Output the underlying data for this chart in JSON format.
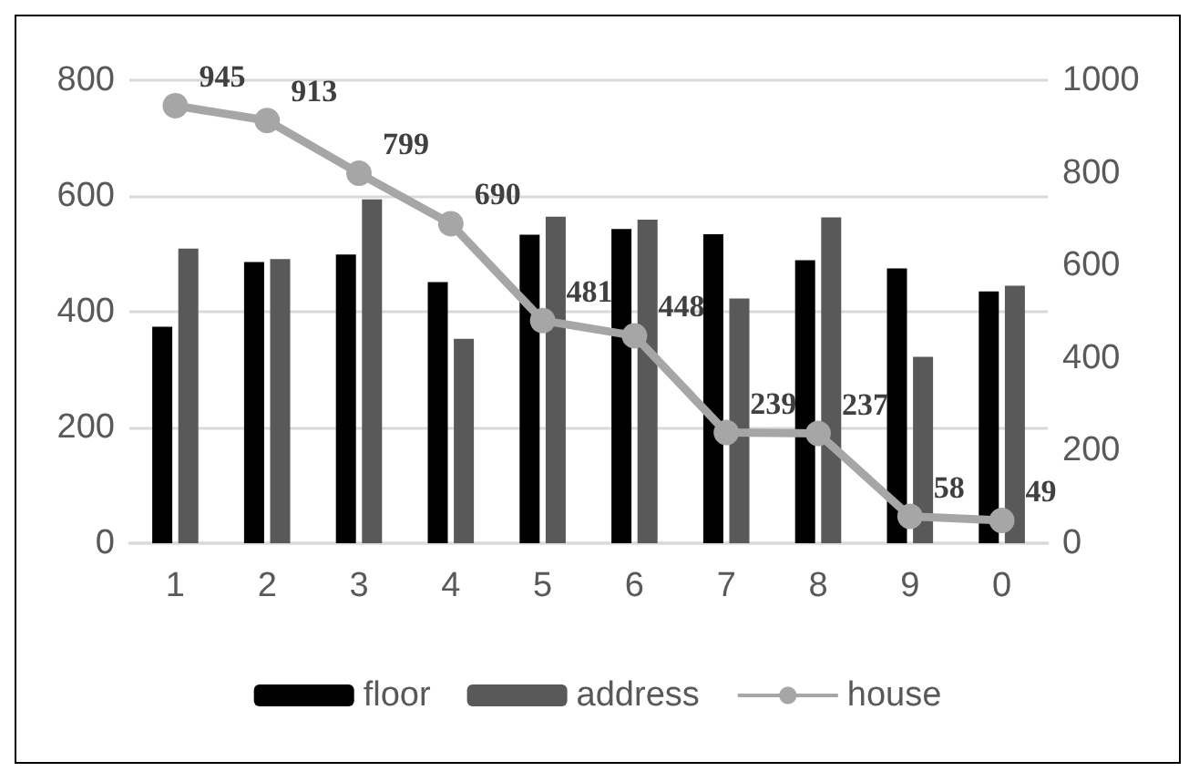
{
  "chart_data": {
    "type": "bar",
    "categories": [
      "1",
      "2",
      "3",
      "4",
      "5",
      "6",
      "7",
      "8",
      "9",
      "0"
    ],
    "series": [
      {
        "name": "floor",
        "color": "#000000",
        "values": [
          374,
          486,
          499,
          451,
          533,
          543,
          534,
          489,
          475,
          435
        ]
      },
      {
        "name": "address",
        "color": "#595959",
        "values": [
          509,
          491,
          594,
          353,
          564,
          559,
          423,
          563,
          322,
          445
        ]
      },
      {
        "name": "house",
        "type": "line",
        "axis": "y2",
        "color": "#a6a6a6",
        "marker": "circle",
        "values": [
          945,
          913,
          799,
          690,
          481,
          448,
          239,
          237,
          58,
          49
        ],
        "value_labels": [
          "945",
          "913",
          "799",
          "690",
          "481",
          "448",
          "239",
          "237",
          "58",
          "49"
        ]
      }
    ],
    "ylim": [
      0,
      800
    ],
    "yticks": [
      0,
      200,
      400,
      600,
      800
    ],
    "y2lim": [
      0,
      1000
    ],
    "y2ticks": [
      0,
      200,
      400,
      600,
      800,
      1000
    ],
    "grid": "y",
    "legend": "bottom"
  }
}
